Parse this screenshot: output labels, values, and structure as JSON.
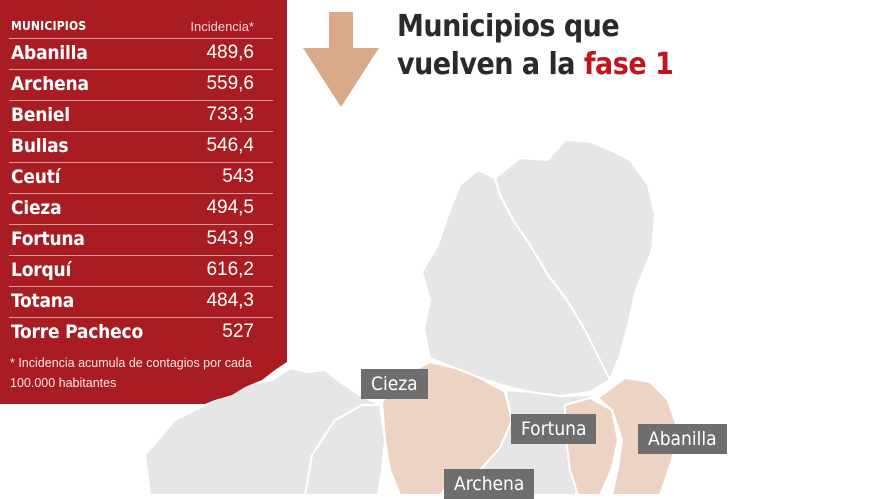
{
  "colors": {
    "panel_red": "#a81c22",
    "arrow": "#d9a98a",
    "title_accent": "#c0151f",
    "municipality_fill": "#e6e6e6",
    "highlight_fill": "#ecd3c3",
    "label_bg": "#6e6e6e"
  },
  "icons": {
    "arrow": "down-arrow-icon"
  },
  "title": {
    "line1": "Municipios que",
    "line2_prefix": "vuelven a la",
    "line2_accent": "fase 1"
  },
  "table": {
    "header_name": "MUNICIPIOS",
    "header_value": "Incidencia*",
    "rows": [
      {
        "name": "Abanilla",
        "value": "489,6"
      },
      {
        "name": "Archena",
        "value": "559,6"
      },
      {
        "name": "Beniel",
        "value": "733,3"
      },
      {
        "name": "Bullas",
        "value": "546,4"
      },
      {
        "name": "Ceutí",
        "value": "543"
      },
      {
        "name": "Cieza",
        "value": "494,5"
      },
      {
        "name": "Fortuna",
        "value": "543,9"
      },
      {
        "name": "Lorquí",
        "value": "616,2"
      },
      {
        "name": "Totana",
        "value": "484,3"
      },
      {
        "name": "Torre Pacheco",
        "value": "527"
      }
    ],
    "footnote": "* Incidencia acumula de contagios por cada 100.000 habitantes"
  },
  "map": {
    "labels": {
      "cieza": "Cieza",
      "fortuna": "Fortuna",
      "abanilla": "Abanilla",
      "archena": "Archena"
    }
  }
}
